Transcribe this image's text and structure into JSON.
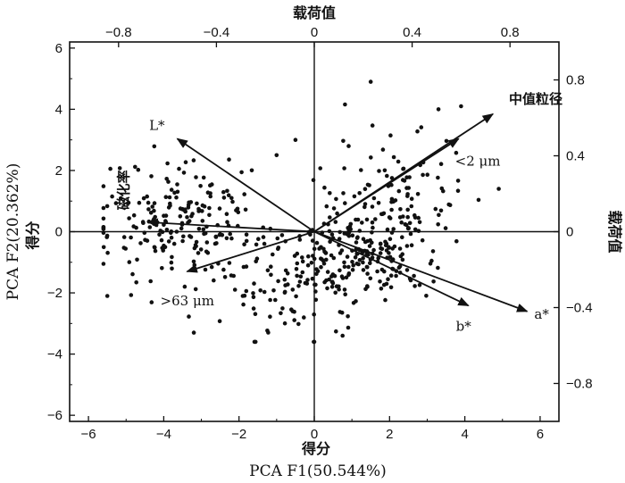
{
  "chart_data": {
    "type": "scatter",
    "title": "",
    "x_axis": {
      "label": "PCA F1(50.544%)",
      "label_cn": "得分",
      "range": [
        -6.5,
        6.5
      ],
      "ticks": [
        -6,
        -4,
        -2,
        0,
        2,
        4,
        6
      ],
      "tick_labels": [
        "−6",
        "−4",
        "−2",
        "0",
        "2",
        "4",
        "6"
      ]
    },
    "y_axis": {
      "label": "PCA F2(20.362%)",
      "label_cn": "得分",
      "range": [
        -6.2,
        6.2
      ],
      "ticks": [
        -6,
        -4,
        -2,
        0,
        2,
        4,
        6
      ],
      "tick_labels": [
        "−6",
        "−4",
        "−2",
        "0",
        "2",
        "4",
        "6"
      ]
    },
    "top_axis": {
      "label": "载荷值",
      "range": [
        -1.0,
        1.0
      ],
      "ticks": [
        -0.8,
        -0.4,
        0,
        0.4,
        0.8
      ],
      "tick_labels": [
        "−0.8",
        "−0.4",
        "0",
        "0.4",
        "0.8"
      ]
    },
    "right_axis": {
      "label": "载荷值",
      "range": [
        -1.0,
        1.0
      ],
      "ticks": [
        -0.8,
        -0.4,
        0,
        0.4,
        0.8
      ],
      "tick_labels": [
        "−0.8",
        "−0.4",
        "0",
        "0.4",
        "0.8"
      ]
    },
    "grid": false,
    "loadings": [
      {
        "name": "中值粒径",
        "x": 0.73,
        "y": 0.62
      },
      {
        "name": "<2 μm",
        "x": 0.59,
        "y": 0.49
      },
      {
        "name": "a*",
        "x": 0.87,
        "y": -0.42
      },
      {
        "name": "b*",
        "x": 0.63,
        "y": -0.39
      },
      {
        "name": "L*",
        "x": -0.56,
        "y": 0.49
      },
      {
        "name": "磁化率",
        "x": -0.68,
        "y": 0.05
      },
      {
        "name": ">63 μm",
        "x": -0.52,
        "y": -0.21
      }
    ],
    "loading_labels": {
      "中值粒径": "中值粒径",
      "<2 μm": "<2 μm",
      "a*": "a*",
      "b*": "b*",
      "L*": "L*",
      "磁化率": "磁化率",
      ">63 μm": ">63 μm"
    },
    "point_colors": {
      "scores": "#111111",
      "vectors": "#111111",
      "axes": "#111111"
    },
    "scores_outliers": [
      [
        1.5,
        4.9
      ],
      [
        3.3,
        4.0
      ],
      [
        3.9,
        4.1
      ],
      [
        4.9,
        1.4
      ],
      [
        -3.2,
        -3.3
      ],
      [
        -5.5,
        -2.1
      ],
      [
        0.0,
        -3.6
      ],
      [
        -1.9,
        -2.1
      ],
      [
        -2.2,
        1.1
      ],
      [
        3.9,
        -2.3
      ],
      [
        -0.5,
        3.0
      ],
      [
        -1.0,
        2.5
      ]
    ]
  }
}
